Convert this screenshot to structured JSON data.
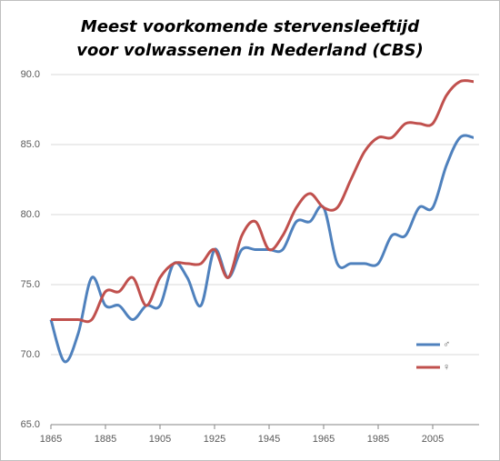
{
  "chart_data": {
    "type": "line",
    "title": [
      "Meest voorkomende stervensleeftijd",
      "voor volwassenen in Nederland (CBS)"
    ],
    "x": [
      1865,
      1870,
      1875,
      1880,
      1885,
      1890,
      1895,
      1900,
      1905,
      1910,
      1915,
      1920,
      1925,
      1930,
      1935,
      1940,
      1945,
      1950,
      1955,
      1960,
      1965,
      1970,
      1975,
      1980,
      1985,
      1990,
      1995,
      2000,
      2005,
      2010,
      2015,
      2020
    ],
    "series": [
      {
        "name": "♂",
        "color": "#4f81bd",
        "values": [
          72.5,
          69.5,
          71.5,
          75.5,
          73.5,
          73.5,
          72.5,
          73.5,
          73.5,
          76.5,
          75.5,
          73.5,
          77.5,
          75.5,
          77.5,
          77.5,
          77.5,
          77.5,
          79.5,
          79.5,
          80.5,
          76.5,
          76.5,
          76.5,
          76.5,
          78.5,
          78.5,
          80.5,
          80.5,
          83.5,
          85.5,
          85.5
        ]
      },
      {
        "name": "♀",
        "color": "#c0504d",
        "values": [
          72.5,
          72.5,
          72.5,
          72.5,
          74.5,
          74.5,
          75.5,
          73.5,
          75.5,
          76.5,
          76.5,
          76.5,
          77.5,
          75.5,
          78.5,
          79.5,
          77.5,
          78.5,
          80.5,
          81.5,
          80.5,
          80.5,
          82.5,
          84.5,
          85.5,
          85.5,
          86.5,
          86.5,
          86.5,
          88.5,
          89.5,
          89.5
        ]
      }
    ],
    "xlim": [
      1865,
      2022
    ],
    "xticks": [
      1865,
      1885,
      1905,
      1925,
      1945,
      1965,
      1985,
      2005
    ],
    "ylim": [
      65,
      90
    ],
    "yticks": [
      {
        "value": 65,
        "label": "65.0"
      },
      {
        "value": 70,
        "label": "70.0"
      },
      {
        "value": 75,
        "label": "75.0"
      },
      {
        "value": 80,
        "label": "80.0"
      },
      {
        "value": 85,
        "label": "85.0"
      },
      {
        "value": 90,
        "label": "90.0"
      }
    ],
    "grid": true
  }
}
